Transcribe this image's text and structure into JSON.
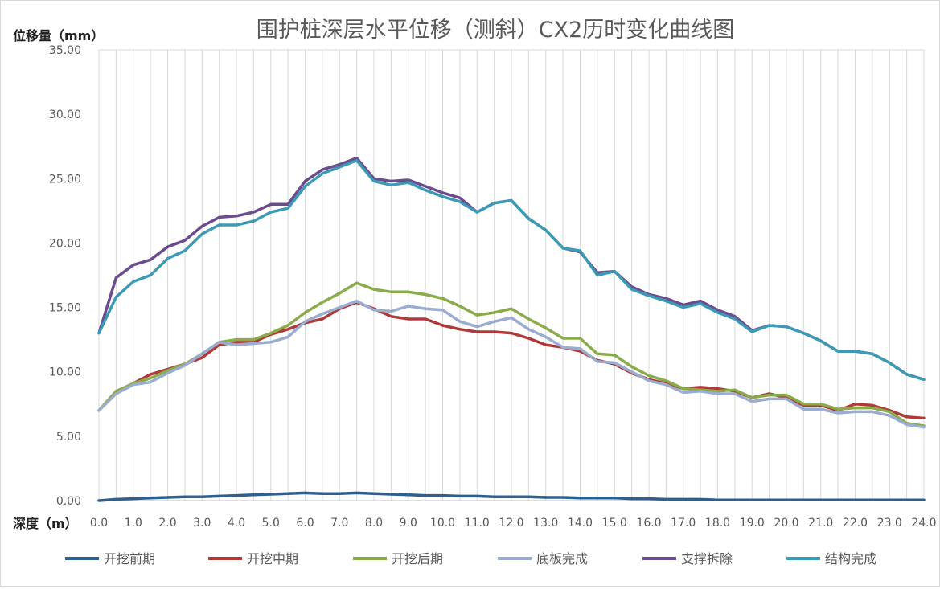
{
  "chart_data": {
    "type": "line",
    "title": "围护桩深层水平位移（测斜）CX2历时变化曲线图",
    "ylabel": "位移量（mm）",
    "xlabel": "深度（m）",
    "ylim": [
      0,
      35
    ],
    "yticks": [
      "0.00",
      "5.00",
      "10.00",
      "15.00",
      "20.00",
      "25.00",
      "30.00",
      "35.00"
    ],
    "xlim": [
      0,
      24
    ],
    "xticks": [
      "0.0",
      "1.0",
      "2.0",
      "3.0",
      "4.0",
      "5.0",
      "6.0",
      "7.0",
      "8.0",
      "9.0",
      "10.0",
      "11.0",
      "12.0",
      "13.0",
      "14.0",
      "15.0",
      "16.0",
      "17.0",
      "18.0",
      "19.0",
      "20.0",
      "21.0",
      "22.0",
      "23.0",
      "24.0"
    ],
    "grid": "vertical",
    "legend_position": "bottom",
    "x": [
      0,
      0.5,
      1,
      1.5,
      2,
      2.5,
      3,
      3.5,
      4,
      4.5,
      5,
      5.5,
      6,
      6.5,
      7,
      7.5,
      8,
      8.5,
      9,
      9.5,
      10,
      10.5,
      11,
      11.5,
      12,
      12.5,
      13,
      13.5,
      14,
      14.5,
      15,
      15.5,
      16,
      16.5,
      17,
      17.5,
      18,
      18.5,
      19,
      19.5,
      20,
      20.5,
      21,
      21.5,
      22,
      22.5,
      23,
      23.5,
      24
    ],
    "series": [
      {
        "name": "开挖前期",
        "color": "#2e5f8f",
        "values": [
          0,
          0.1,
          0.15,
          0.2,
          0.25,
          0.3,
          0.3,
          0.35,
          0.4,
          0.45,
          0.5,
          0.55,
          0.6,
          0.55,
          0.55,
          0.6,
          0.55,
          0.5,
          0.45,
          0.4,
          0.4,
          0.35,
          0.35,
          0.3,
          0.3,
          0.3,
          0.25,
          0.25,
          0.2,
          0.2,
          0.2,
          0.15,
          0.15,
          0.1,
          0.1,
          0.1,
          0.05,
          0.05,
          0.05,
          0.05,
          0.05,
          0.05,
          0.05,
          0.05,
          0.05,
          0.05,
          0.05,
          0.05,
          0.05
        ]
      },
      {
        "name": "开挖中期",
        "color": "#b03a3a",
        "values": [
          7,
          8.4,
          9.1,
          9.8,
          10.2,
          10.6,
          11.1,
          12.1,
          12.3,
          12.3,
          12.9,
          13.3,
          13.8,
          14.1,
          14.9,
          15.4,
          14.9,
          14.3,
          14.1,
          14.1,
          13.6,
          13.3,
          13.1,
          13.1,
          13.0,
          12.6,
          12.1,
          11.9,
          11.6,
          10.9,
          10.6,
          9.9,
          9.4,
          9.1,
          8.7,
          8.8,
          8.7,
          8.5,
          8.0,
          8.3,
          8.0,
          7.4,
          7.4,
          7.0,
          7.5,
          7.4,
          7.0,
          6.5,
          6.4
        ]
      },
      {
        "name": "开挖后期",
        "color": "#8aab4a",
        "values": [
          7,
          8.5,
          9.1,
          9.5,
          10.1,
          10.6,
          11.4,
          12.3,
          12.5,
          12.5,
          13.0,
          13.6,
          14.6,
          15.4,
          16.1,
          16.9,
          16.4,
          16.2,
          16.2,
          16.0,
          15.7,
          15.1,
          14.4,
          14.6,
          14.9,
          14.1,
          13.4,
          12.6,
          12.6,
          11.4,
          11.3,
          10.4,
          9.7,
          9.3,
          8.7,
          8.6,
          8.5,
          8.6,
          8.0,
          8.2,
          8.2,
          7.5,
          7.5,
          7.1,
          7.2,
          7.2,
          6.9,
          6.0,
          5.8
        ]
      },
      {
        "name": "底板完成",
        "color": "#9aacd0",
        "values": [
          7,
          8.3,
          9.0,
          9.2,
          9.9,
          10.5,
          11.4,
          12.3,
          12.1,
          12.2,
          12.3,
          12.7,
          13.9,
          14.5,
          15.0,
          15.5,
          14.8,
          14.7,
          15.1,
          14.9,
          14.8,
          13.9,
          13.5,
          13.9,
          14.2,
          13.3,
          12.7,
          11.9,
          11.8,
          10.8,
          10.7,
          10.0,
          9.3,
          9.0,
          8.4,
          8.5,
          8.3,
          8.3,
          7.7,
          7.9,
          7.9,
          7.1,
          7.1,
          6.8,
          6.9,
          6.9,
          6.6,
          5.9,
          5.7
        ]
      },
      {
        "name": "支撑拆除",
        "color": "#6b4c8e",
        "values": [
          13.0,
          17.3,
          18.3,
          18.7,
          19.7,
          20.2,
          21.3,
          22.0,
          22.1,
          22.4,
          23.0,
          23.0,
          24.8,
          25.7,
          26.1,
          26.6,
          25.0,
          24.8,
          24.9,
          24.4,
          23.9,
          23.5,
          22.4,
          23.1,
          23.3,
          21.9,
          21.0,
          19.6,
          19.3,
          17.7,
          17.8,
          16.6,
          16.0,
          15.7,
          15.2,
          15.5,
          14.8,
          14.3,
          13.2,
          13.6,
          13.5,
          13.0,
          12.4,
          11.6,
          11.6,
          11.4,
          10.7,
          9.8,
          9.4
        ]
      },
      {
        "name": "结构完成",
        "color": "#3c9ab5",
        "values": [
          13.0,
          15.8,
          17.0,
          17.5,
          18.8,
          19.4,
          20.7,
          21.4,
          21.4,
          21.7,
          22.4,
          22.7,
          24.4,
          25.4,
          25.9,
          26.4,
          24.8,
          24.5,
          24.7,
          24.1,
          23.6,
          23.2,
          22.4,
          23.1,
          23.3,
          21.9,
          21.0,
          19.6,
          19.4,
          17.5,
          17.8,
          16.4,
          15.9,
          15.5,
          15.0,
          15.3,
          14.6,
          14.1,
          13.1,
          13.6,
          13.5,
          13.0,
          12.4,
          11.6,
          11.6,
          11.4,
          10.7,
          9.8,
          9.4
        ]
      }
    ]
  }
}
